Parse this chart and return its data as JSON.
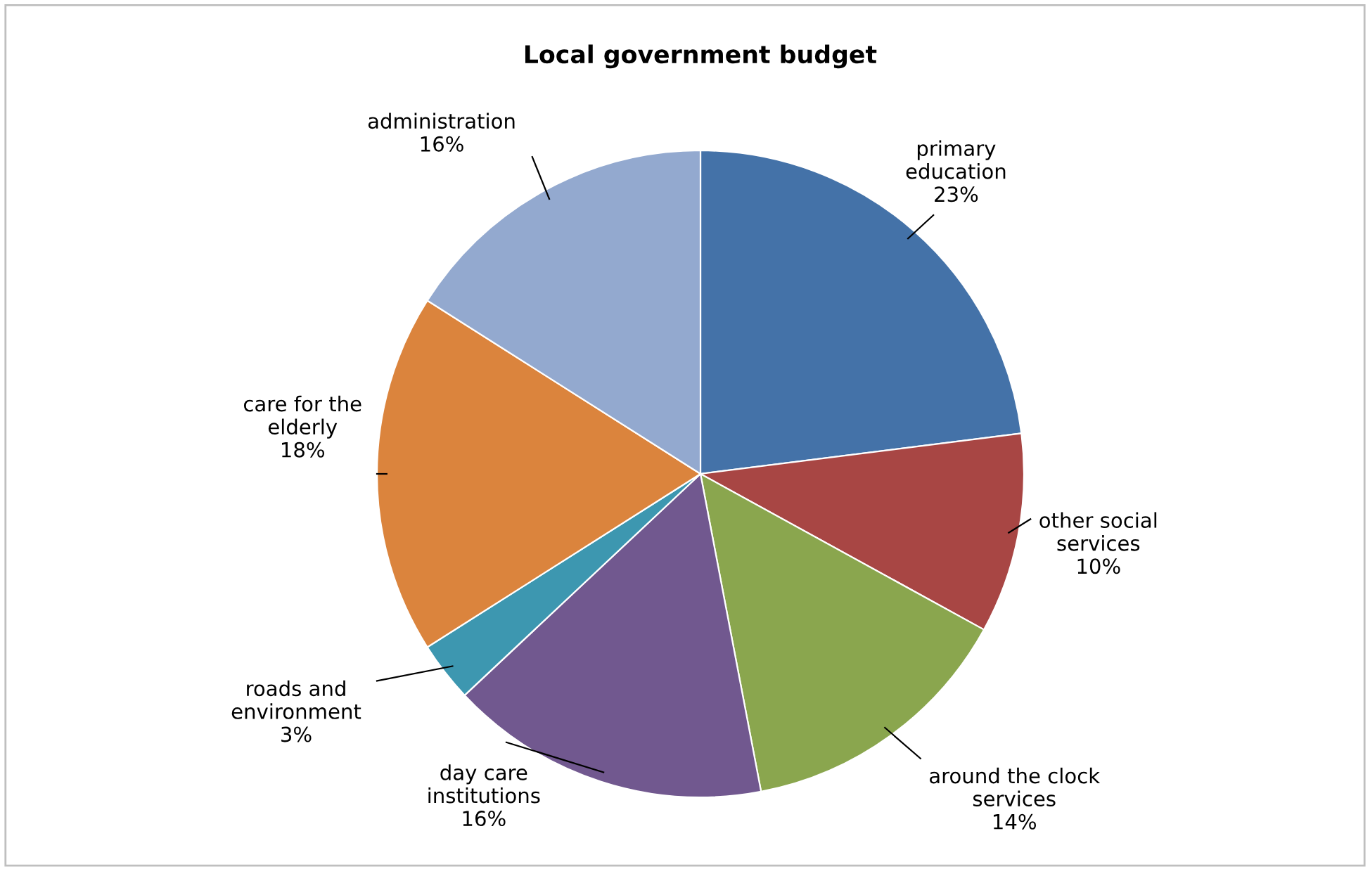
{
  "chart_data": {
    "type": "pie",
    "title": "Local government budget",
    "categories": [
      "primary education",
      "other social services",
      "around the clock services",
      "day care institutions",
      "roads and environment",
      "care for the elderly",
      "administration"
    ],
    "values": [
      23,
      10,
      14,
      16,
      3,
      18,
      16
    ],
    "colors": [
      "#4472a8",
      "#a84644",
      "#8aa64e",
      "#71588f",
      "#3d97b0",
      "#db843d",
      "#93a9cf"
    ],
    "value_labels": [
      "23%",
      "10%",
      "14%",
      "16%",
      "3%",
      "18%",
      "16%"
    ],
    "legend": false
  }
}
